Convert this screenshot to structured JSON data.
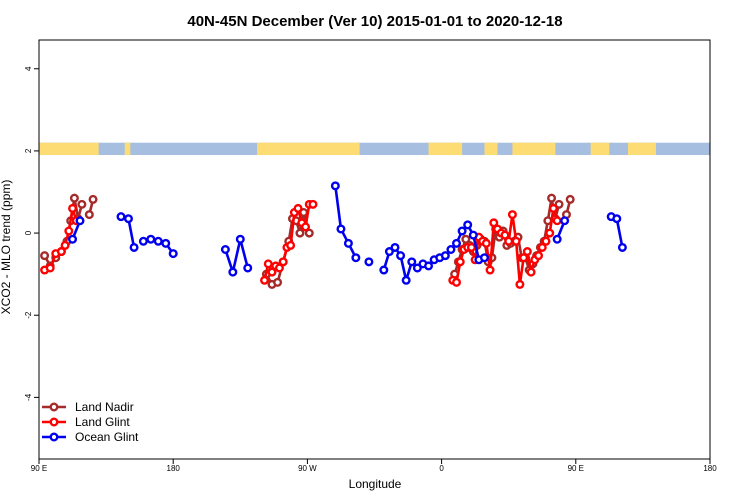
{
  "chart_data": {
    "type": "line",
    "title": "40N-45N December (Ver 10)   2015-01-01 to 2020-12-18",
    "xlabel": "Longitude",
    "ylabel": "XCO2 - MLO trend (ppm)",
    "xlim": [
      90,
      450
    ],
    "ylim": [
      -5.5,
      4.7
    ],
    "x_ticks": [
      {
        "value": 90,
        "label": "90 E"
      },
      {
        "value": 162,
        "label": "180"
      },
      {
        "value": 234,
        "label": "90 W"
      },
      {
        "value": 306,
        "label": "0"
      },
      {
        "value": 378,
        "label": "90 E"
      },
      {
        "value": 450,
        "label": "180"
      }
    ],
    "y_ticks": [
      -4,
      -2,
      0,
      2,
      4
    ],
    "legend_position": "bottom-left",
    "land_mask_band": {
      "y_range": [
        1.9,
        2.2
      ],
      "land_color": "#fddc73",
      "ocean_color": "#a6bfe0",
      "land_segments": [
        [
          90,
          122
        ],
        [
          136,
          139
        ],
        [
          207,
          262
        ],
        [
          299,
          317
        ],
        [
          329,
          336
        ],
        [
          344,
          367
        ],
        [
          386,
          396
        ],
        [
          406,
          421
        ]
      ]
    },
    "series": [
      {
        "name": "Land Nadir",
        "color": "#a52a2a",
        "segments": [
          [
            [
              93,
              -0.55
            ],
            [
              96,
              -0.8
            ],
            [
              99,
              -0.6
            ],
            [
              102,
              -0.45
            ],
            [
              105,
              -0.2
            ],
            [
              107,
              0.3
            ],
            [
              109,
              0.85
            ],
            [
              111,
              0.35
            ],
            [
              113,
              0.7
            ]
          ],
          [
            [
              117,
              0.45
            ],
            [
              119,
              0.82
            ]
          ],
          [
            [
              212,
              -1.0
            ],
            [
              215,
              -1.25
            ],
            [
              218,
              -1.2
            ],
            [
              221,
              -0.7
            ],
            [
              224,
              -0.2
            ],
            [
              226,
              0.35
            ],
            [
              228,
              0.3
            ],
            [
              230,
              0.0
            ],
            [
              232,
              0.5
            ],
            [
              235,
              0.0
            ]
          ],
          [
            [
              313,
              -1.0
            ],
            [
              315,
              -0.7
            ],
            [
              317,
              -0.4
            ],
            [
              319,
              -0.15
            ],
            [
              321,
              -0.3
            ],
            [
              323,
              -0.45
            ],
            [
              325,
              -0.3
            ],
            [
              327,
              -0.15
            ],
            [
              329,
              -0.2
            ],
            [
              331,
              -0.7
            ],
            [
              333,
              -0.6
            ],
            [
              335,
              0.1
            ],
            [
              337,
              -0.1
            ],
            [
              339,
              0.05
            ],
            [
              341,
              -0.3
            ],
            [
              343,
              -0.25
            ],
            [
              345,
              -0.2
            ],
            [
              347,
              -0.1
            ],
            [
              349,
              -0.6
            ],
            [
              351,
              -0.6
            ],
            [
              353,
              -0.9
            ],
            [
              355,
              -0.75
            ],
            [
              357,
              -0.55
            ],
            [
              359,
              -0.35
            ],
            [
              361,
              -0.2
            ],
            [
              363,
              0.3
            ],
            [
              365,
              0.85
            ],
            [
              367,
              0.35
            ],
            [
              369,
              0.7
            ]
          ],
          [
            [
              373,
              0.45
            ],
            [
              375,
              0.82
            ]
          ]
        ]
      },
      {
        "name": "Land Glint",
        "color": "#ff0000",
        "segments": [
          [
            [
              93,
              -0.9
            ],
            [
              96,
              -0.85
            ],
            [
              99,
              -0.5
            ],
            [
              102,
              -0.45
            ],
            [
              104,
              -0.3
            ],
            [
              106,
              0.05
            ],
            [
              108,
              0.6
            ],
            [
              110,
              0.3
            ]
          ],
          [
            [
              211,
              -1.15
            ],
            [
              213,
              -0.75
            ],
            [
              215,
              -0.95
            ],
            [
              217,
              -0.8
            ],
            [
              219,
              -0.85
            ],
            [
              221,
              -0.7
            ],
            [
              223,
              -0.35
            ],
            [
              225,
              -0.3
            ],
            [
              227,
              0.5
            ],
            [
              229,
              0.6
            ],
            [
              231,
              0.25
            ],
            [
              233,
              0.15
            ],
            [
              235,
              0.7
            ],
            [
              237,
              0.7
            ]
          ],
          [
            [
              312,
              -1.15
            ],
            [
              314,
              -1.2
            ],
            [
              316,
              -0.7
            ],
            [
              318,
              -0.4
            ],
            [
              320,
              -0.35
            ],
            [
              322,
              -0.35
            ],
            [
              324,
              -0.65
            ],
            [
              326,
              -0.1
            ],
            [
              328,
              -0.2
            ],
            [
              330,
              -0.25
            ],
            [
              332,
              -0.9
            ],
            [
              334,
              0.25
            ],
            [
              336,
              0.1
            ],
            [
              338,
              0.0
            ],
            [
              340,
              -0.05
            ],
            [
              342,
              -0.2
            ],
            [
              344,
              0.45
            ],
            [
              346,
              -0.2
            ],
            [
              348,
              -1.25
            ],
            [
              350,
              -0.6
            ],
            [
              352,
              -0.45
            ],
            [
              354,
              -0.95
            ],
            [
              356,
              -0.65
            ],
            [
              358,
              -0.55
            ],
            [
              360,
              -0.35
            ],
            [
              362,
              -0.2
            ],
            [
              364,
              0.0
            ],
            [
              366,
              0.6
            ],
            [
              368,
              0.3
            ]
          ]
        ]
      },
      {
        "name": "Ocean Glint",
        "color": "#0000ee",
        "segments": [
          [
            [
              108,
              -0.15
            ],
            [
              112,
              0.3
            ]
          ],
          [
            [
              134,
              0.4
            ],
            [
              138,
              0.35
            ],
            [
              141,
              -0.35
            ]
          ],
          [
            [
              146,
              -0.2
            ],
            [
              150,
              -0.15
            ],
            [
              154,
              -0.2
            ],
            [
              158,
              -0.25
            ],
            [
              162,
              -0.5
            ]
          ],
          [
            [
              190,
              -0.4
            ],
            [
              194,
              -0.95
            ],
            [
              198,
              -0.15
            ],
            [
              202,
              -0.85
            ]
          ],
          [
            [
              249,
              1.15
            ],
            [
              252,
              0.1
            ],
            [
              256,
              -0.25
            ],
            [
              260,
              -0.6
            ]
          ],
          [
            [
              267,
              -0.7
            ]
          ],
          [
            [
              275,
              -0.9
            ],
            [
              278,
              -0.45
            ],
            [
              281,
              -0.35
            ],
            [
              284,
              -0.55
            ],
            [
              287,
              -1.15
            ],
            [
              290,
              -0.7
            ],
            [
              293,
              -0.85
            ],
            [
              296,
              -0.75
            ],
            [
              299,
              -0.8
            ],
            [
              302,
              -0.65
            ],
            [
              305,
              -0.6
            ],
            [
              308,
              -0.55
            ],
            [
              311,
              -0.4
            ],
            [
              314,
              -0.25
            ],
            [
              317,
              0.05
            ],
            [
              320,
              0.2
            ],
            [
              323,
              -0.05
            ],
            [
              326,
              -0.65
            ],
            [
              329,
              -0.6
            ]
          ],
          [
            [
              368,
              -0.15
            ],
            [
              372,
              0.3
            ]
          ],
          [
            [
              397,
              0.4
            ],
            [
              400,
              0.35
            ],
            [
              403,
              -0.35
            ]
          ]
        ]
      }
    ]
  }
}
